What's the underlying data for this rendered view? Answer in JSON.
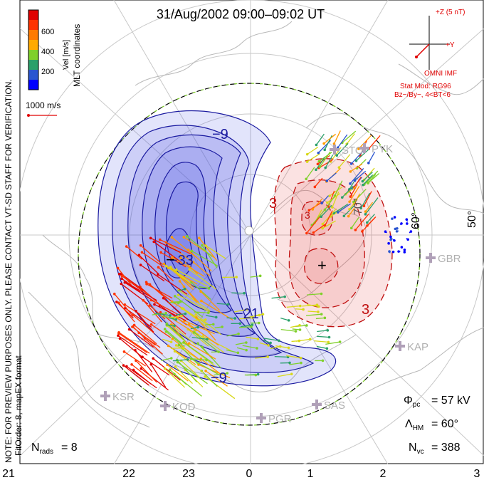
{
  "title": "31/Aug/2002 09:00–09:02 UT",
  "colorbar": {
    "label": "Vel [m/s]",
    "ticks": [
      "600",
      "400",
      "200"
    ],
    "colors": [
      "#0000ff",
      "#2a55d0",
      "#2aa06a",
      "#7fd02a",
      "#d8d81a",
      "#ff9a00",
      "#ff3300",
      "#e00000"
    ]
  },
  "coords_label": "MLT coordinates",
  "scale_label": "1000 m/s",
  "notes": [
    "NOTE: FOR PREVIEW PURPOSES ONLY. PLEASE CONTACT VT-SD STAFF FOR VERIFICATION.",
    "FitOrder: 8, mapEX format"
  ],
  "imf": {
    "plus_z": "+Z (5 nT)",
    "plus_y": "+Y",
    "source": "OMNI IMF",
    "stat_mod": "Stat Mod: RG96",
    "condition": "Bz−/By−, 4<BT<6"
  },
  "latitude_labels": [
    "60°",
    "50°",
    "70°"
  ],
  "contour_labels": {
    "negative": [
      "−9",
      "−33",
      "−21",
      "−9"
    ],
    "positive": [
      "3",
      "3",
      "3"
    ],
    "markers": [
      "−",
      "+"
    ]
  },
  "stations": [
    "STO",
    "PYK",
    "GBR",
    "KAP",
    "KSR",
    "KOD",
    "PGR",
    "SAS"
  ],
  "stats": {
    "phi_pc": "= 57 kV",
    "lambda_hm": "= 60°",
    "n_vc": "= 388",
    "n_rads": "= 8"
  },
  "mlt_ticks": [
    "21",
    "22",
    "23",
    "0",
    "1",
    "2",
    "3"
  ],
  "colors": {
    "negative_fill": "#4b55e6",
    "positive_fill": "#e64b4b",
    "negative_line": "#1a1aa0",
    "positive_line": "#c01010",
    "imf_color": "#e00000"
  }
}
